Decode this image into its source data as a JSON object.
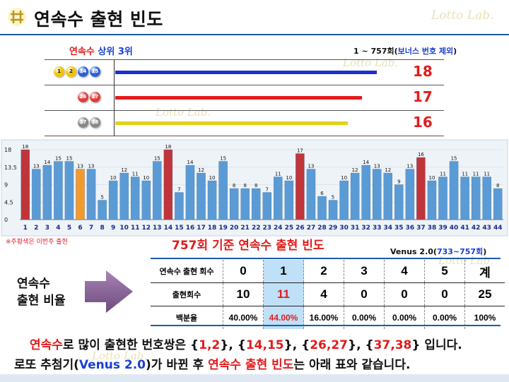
{
  "title": "연속수 출현 빈도",
  "watermark": "Lotto Lab.",
  "subtitle": {
    "part1": "연속수",
    "part2": " 상위 3위"
  },
  "range_note": {
    "part1": "1 ~ 757회(",
    "part2": "보너스 번호 제외",
    "part3": ")"
  },
  "top_pairs": [
    {
      "balls": [
        "1",
        "2",
        "14",
        "15"
      ],
      "count": "18",
      "bar_color": "#1a2fd1",
      "value": 18
    },
    {
      "balls": [
        "26",
        "27"
      ],
      "count": "17",
      "bar_color": "#e31b1b",
      "value": 17
    },
    {
      "balls": [
        "37",
        "38"
      ],
      "count": "16",
      "bar_color": "#e0d21a",
      "value": 16
    }
  ],
  "ball_colors": {
    "1": "#f2c200",
    "2": "#f2c200",
    "14": "#2a5fd6",
    "15": "#2a5fd6",
    "26": "#e23b3b",
    "27": "#e23b3b",
    "37": "#888888",
    "38": "#888888"
  },
  "chart_data": {
    "type": "bar",
    "categories": [
      "1",
      "2",
      "3",
      "4",
      "5",
      "6",
      "7",
      "8",
      "9",
      "10",
      "11",
      "12",
      "13",
      "14",
      "15",
      "16",
      "17",
      "18",
      "19",
      "20",
      "21",
      "22",
      "23",
      "24",
      "25",
      "26",
      "27",
      "28",
      "29",
      "30",
      "31",
      "32",
      "33",
      "34",
      "35",
      "36",
      "37",
      "38",
      "39",
      "40",
      "41",
      "42",
      "43",
      "44"
    ],
    "values": [
      18,
      13,
      14,
      15,
      15,
      13,
      13,
      5,
      10,
      12,
      11,
      10,
      15,
      18,
      7,
      14,
      12,
      10,
      15,
      8,
      8,
      8,
      7,
      11,
      10,
      17,
      13,
      6,
      5,
      10,
      12,
      14,
      13,
      12,
      9,
      13,
      16,
      10,
      11,
      15,
      11,
      11,
      11,
      8
    ],
    "ylim": [
      0,
      18
    ],
    "yticks": [
      "0",
      "4.5",
      "9",
      "13.5",
      "18"
    ],
    "highlight_red": [
      "1",
      "14",
      "26",
      "37"
    ],
    "highlight_orange": [
      "6"
    ],
    "colors": {
      "default": "#5b9bd5",
      "red": "#c0353a",
      "orange": "#f29a2e"
    }
  },
  "chart_title": "757회 기준 연속수 출현 빈도",
  "legend_note": "※주황색은 이번주 출현",
  "venus_note": {
    "part1": "Venus 2.0(",
    "part2": "733~757회",
    "part3": ")"
  },
  "ratio_label": {
    "line1": "연속수",
    "line2": "출현 비율"
  },
  "stats_table": {
    "row1": {
      "header": "연속수 출현 회수",
      "cells": [
        "0",
        "1",
        "2",
        "3",
        "4",
        "5",
        "계"
      ]
    },
    "row2": {
      "header": "출현회수",
      "cells": [
        "10",
        "11",
        "4",
        "0",
        "0",
        "0",
        "25"
      ]
    },
    "row3": {
      "header": "백분율",
      "cells": [
        "40.00%",
        "44.00%",
        "16.00%",
        "0.00%",
        "0.00%",
        "0.00%",
        "100%"
      ]
    }
  },
  "footer1": {
    "a": "연속수",
    "b": "로 많이 출현한 번호쌍은 {",
    "c": "1,2",
    "d": "}, {",
    "e": "14,15",
    "f": "}, {",
    "g": "26,27",
    "h": "}, {",
    "i": "37,38",
    "j": "} 입니다."
  },
  "footer2": {
    "a": "로또 추첨기(",
    "b": "Venus 2.0",
    "c": ")가 바뀐 후 ",
    "d": "연속수 출현 빈도",
    "e": "는 아래 표와 같습니다."
  }
}
